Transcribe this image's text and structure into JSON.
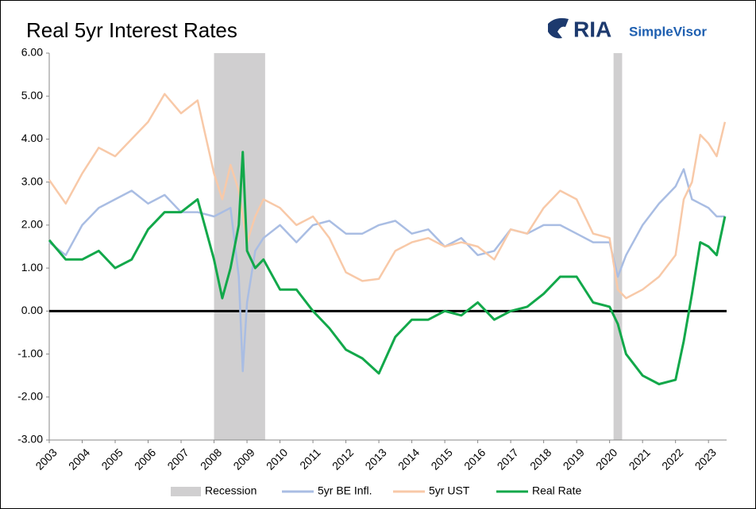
{
  "chart_data": {
    "type": "line",
    "title": "Real 5yr Interest Rates",
    "logo": {
      "brand": "RIA",
      "product": "SimpleVisor"
    },
    "x": [
      2003,
      2003.5,
      2004,
      2004.5,
      2005,
      2005.5,
      2006,
      2006.5,
      2007,
      2007.5,
      2008,
      2008.25,
      2008.5,
      2008.75,
      2008.87,
      2009,
      2009.25,
      2009.5,
      2010,
      2010.5,
      2011,
      2011.5,
      2012,
      2012.5,
      2013,
      2013.5,
      2014,
      2014.5,
      2015,
      2015.5,
      2016,
      2016.5,
      2017,
      2017.5,
      2018,
      2018.5,
      2019,
      2019.5,
      2020,
      2020.25,
      2020.5,
      2021,
      2021.5,
      2022,
      2022.25,
      2022.5,
      2022.75,
      2023,
      2023.25,
      2023.5
    ],
    "series": [
      {
        "name": "5yr BE Infl.",
        "color": "#a9bde3",
        "values": [
          1.6,
          1.3,
          2.0,
          2.4,
          2.6,
          2.8,
          2.5,
          2.7,
          2.3,
          2.3,
          2.2,
          2.3,
          2.4,
          0.8,
          -1.4,
          0.2,
          1.4,
          1.7,
          2.0,
          1.6,
          2.0,
          2.1,
          1.8,
          1.8,
          2.0,
          2.1,
          1.8,
          1.9,
          1.5,
          1.7,
          1.3,
          1.4,
          1.9,
          1.8,
          2.0,
          2.0,
          1.8,
          1.6,
          1.6,
          0.8,
          1.3,
          2.0,
          2.5,
          2.9,
          3.3,
          2.6,
          2.5,
          2.4,
          2.2,
          2.2
        ]
      },
      {
        "name": "5yr UST",
        "color": "#f8c9a8",
        "values": [
          3.05,
          2.5,
          3.2,
          3.8,
          3.6,
          4.0,
          4.4,
          5.05,
          4.6,
          4.9,
          3.2,
          2.6,
          3.4,
          2.8,
          2.2,
          1.6,
          2.2,
          2.6,
          2.4,
          2.0,
          2.2,
          1.7,
          0.9,
          0.7,
          0.75,
          1.4,
          1.6,
          1.7,
          1.5,
          1.6,
          1.5,
          1.2,
          1.9,
          1.8,
          2.4,
          2.8,
          2.6,
          1.8,
          1.7,
          0.5,
          0.3,
          0.5,
          0.8,
          1.3,
          2.6,
          3.0,
          4.1,
          3.9,
          3.6,
          4.4
        ]
      },
      {
        "name": "Real Rate",
        "color": "#12a84a",
        "values": [
          1.65,
          1.2,
          1.2,
          1.4,
          1.0,
          1.2,
          1.9,
          2.3,
          2.3,
          2.6,
          1.2,
          0.3,
          1.0,
          2.0,
          3.7,
          1.4,
          1.0,
          1.2,
          0.5,
          0.5,
          0.0,
          -0.4,
          -0.9,
          -1.1,
          -1.45,
          -0.6,
          -0.2,
          -0.2,
          0.0,
          -0.1,
          0.2,
          -0.2,
          0.0,
          0.1,
          0.4,
          0.8,
          0.8,
          0.2,
          0.1,
          -0.3,
          -1.0,
          -1.5,
          -1.7,
          -1.6,
          -0.7,
          0.4,
          1.6,
          1.5,
          1.3,
          2.2
        ]
      }
    ],
    "recession": {
      "name": "Recession",
      "color": "#d0cfd0",
      "spans": [
        [
          2008,
          2009.55
        ],
        [
          2020.12,
          2020.38
        ]
      ]
    },
    "xlim": [
      2003,
      2023.55
    ],
    "xticks": [
      2003,
      2004,
      2005,
      2006,
      2007,
      2008,
      2009,
      2010,
      2011,
      2012,
      2013,
      2014,
      2015,
      2016,
      2017,
      2018,
      2019,
      2020,
      2021,
      2022,
      2023
    ],
    "ylim": [
      -3,
      6
    ],
    "yticks": [
      {
        "value": 6,
        "label": "6.00"
      },
      {
        "value": 5,
        "label": "5.00"
      },
      {
        "value": 4,
        "label": "4.00"
      },
      {
        "value": 3,
        "label": "3.00"
      },
      {
        "value": 2,
        "label": "2.00"
      },
      {
        "value": 1,
        "label": "1.00"
      },
      {
        "value": 0,
        "label": "0.00"
      },
      {
        "value": -1,
        "label": "-1.00"
      },
      {
        "value": -2,
        "label": "-2.00"
      },
      {
        "value": -3,
        "label": "-3.00"
      }
    ],
    "zero_line": true
  }
}
